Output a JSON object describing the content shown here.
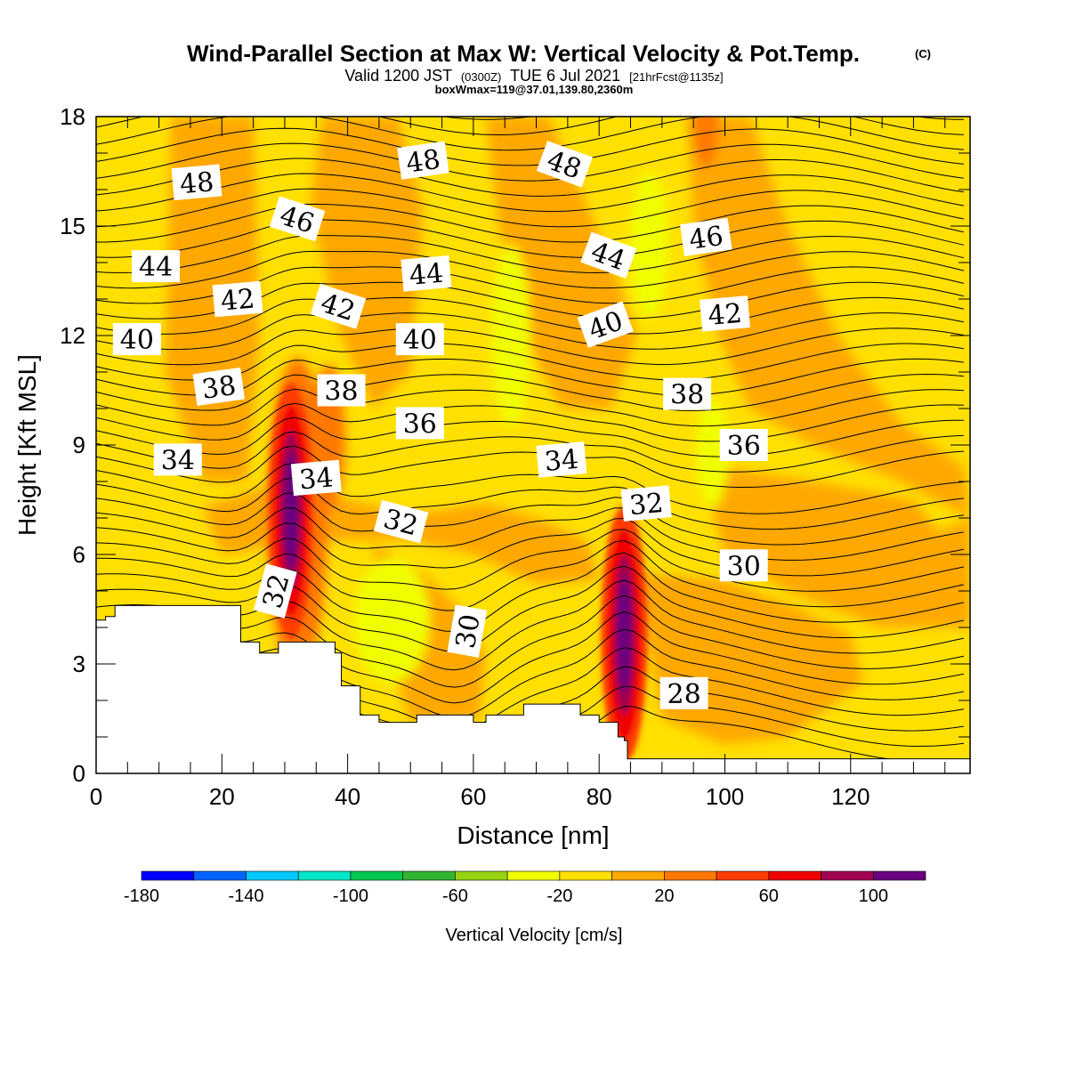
{
  "title": {
    "main": "Wind-Parallel Section at Max W: Vertical Velocity & Pot.Temp.",
    "copyright": "(C)",
    "valid_prefix": "Valid 1200 JST",
    "valid_utc": "(0300Z)",
    "valid_date": "TUE 6 Jul 2021",
    "forecast": "[21hrFcst@1135z]",
    "boxwmax": "boxWmax=119@37.01,139.80,2360m"
  },
  "chart_data": {
    "type": "heatmap",
    "xlabel": "Distance [nm]",
    "ylabel": "Height [Kft MSL]",
    "xlim": [
      0,
      139
    ],
    "ylim": [
      0,
      18
    ],
    "x_ticks": [
      "0",
      "20",
      "40",
      "60",
      "80",
      "100",
      "120"
    ],
    "y_ticks": [
      "0",
      "3",
      "6",
      "9",
      "12",
      "15",
      "18"
    ],
    "colorbar": {
      "label": "Vertical Velocity [cm/s]",
      "tick_labels": [
        "-180",
        "-140",
        "-100",
        "-60",
        "-20",
        "20",
        "60",
        "100"
      ],
      "bins": [
        {
          "min": -180,
          "max": -160,
          "color": "#0000ff"
        },
        {
          "min": -160,
          "max": -140,
          "color": "#0064ff"
        },
        {
          "min": -140,
          "max": -120,
          "color": "#00c8ff"
        },
        {
          "min": -120,
          "max": -100,
          "color": "#00e6c8"
        },
        {
          "min": -100,
          "max": -80,
          "color": "#00c850"
        },
        {
          "min": -80,
          "max": -60,
          "color": "#32b432"
        },
        {
          "min": -60,
          "max": -40,
          "color": "#96d214"
        },
        {
          "min": -40,
          "max": -20,
          "color": "#f0ff00"
        },
        {
          "min": -20,
          "max": 0,
          "color": "#ffe000"
        },
        {
          "min": 0,
          "max": 20,
          "color": "#ffa800"
        },
        {
          "min": 20,
          "max": 40,
          "color": "#ff7800"
        },
        {
          "min": 40,
          "max": 60,
          "color": "#ff3c00"
        },
        {
          "min": 60,
          "max": 80,
          "color": "#f00000"
        },
        {
          "min": 80,
          "max": 100,
          "color": "#a00050"
        },
        {
          "min": 100,
          "max": 120,
          "color": "#6a0080"
        }
      ]
    },
    "terrain": {
      "x": [
        0,
        1.5,
        3,
        16,
        20,
        23,
        26,
        29,
        32,
        35,
        38,
        39,
        42,
        45,
        48,
        51,
        58,
        60,
        62,
        65,
        68,
        71,
        74,
        77,
        80,
        83,
        84,
        84.5,
        139
      ],
      "y": [
        4.2,
        4.3,
        4.6,
        4.6,
        4.6,
        3.6,
        3.3,
        3.6,
        3.6,
        3.6,
        3.3,
        2.4,
        1.6,
        1.4,
        1.4,
        1.6,
        1.6,
        1.4,
        1.6,
        1.6,
        1.9,
        1.9,
        1.9,
        1.6,
        1.4,
        1.0,
        0.9,
        0.4,
        0.4
      ]
    },
    "updrafts": [
      {
        "x": 31,
        "y": 7.2,
        "w_max": 119
      },
      {
        "x": 84,
        "y": 3.8,
        "w_max": 110
      }
    ],
    "contour_labels": [
      {
        "text": "48",
        "x": 16,
        "y": 16.2,
        "angle": -5
      },
      {
        "text": "48",
        "x": 52,
        "y": 16.8,
        "angle": -8
      },
      {
        "text": "48",
        "x": 74.5,
        "y": 16.7,
        "angle": 20
      },
      {
        "text": "46",
        "x": 32,
        "y": 15.2,
        "angle": 18
      },
      {
        "text": "46",
        "x": 97,
        "y": 14.7,
        "angle": -8
      },
      {
        "text": "44",
        "x": 9.5,
        "y": 13.9,
        "angle": 0
      },
      {
        "text": "44",
        "x": 52.5,
        "y": 13.7,
        "angle": -5
      },
      {
        "text": "44",
        "x": 81.5,
        "y": 14.2,
        "angle": 20
      },
      {
        "text": "42",
        "x": 22.5,
        "y": 13.0,
        "angle": -5
      },
      {
        "text": "42",
        "x": 38.5,
        "y": 12.8,
        "angle": 18
      },
      {
        "text": "42",
        "x": 100,
        "y": 12.6,
        "angle": -5
      },
      {
        "text": "40",
        "x": 6.5,
        "y": 11.9,
        "angle": 0
      },
      {
        "text": "40",
        "x": 51.5,
        "y": 11.9,
        "angle": 0
      },
      {
        "text": "40",
        "x": 81,
        "y": 12.3,
        "angle": -20
      },
      {
        "text": "38",
        "x": 19.5,
        "y": 10.6,
        "angle": -8
      },
      {
        "text": "38",
        "x": 39,
        "y": 10.5,
        "angle": 0
      },
      {
        "text": "38",
        "x": 94,
        "y": 10.4,
        "angle": 0
      },
      {
        "text": "36",
        "x": 51.5,
        "y": 9.6,
        "angle": 0
      },
      {
        "text": "36",
        "x": 103,
        "y": 9.0,
        "angle": 0
      },
      {
        "text": "34",
        "x": 13,
        "y": 8.6,
        "angle": 0
      },
      {
        "text": "34",
        "x": 35,
        "y": 8.1,
        "angle": -5
      },
      {
        "text": "34",
        "x": 74,
        "y": 8.6,
        "angle": -5
      },
      {
        "text": "32",
        "x": 48.5,
        "y": 6.9,
        "angle": 15
      },
      {
        "text": "32",
        "x": 87.5,
        "y": 7.4,
        "angle": -5
      },
      {
        "text": "32",
        "x": 28.5,
        "y": 5.0,
        "angle": -75
      },
      {
        "text": "30",
        "x": 59,
        "y": 3.9,
        "angle": -80
      },
      {
        "text": "30",
        "x": 103,
        "y": 5.7,
        "angle": 0
      },
      {
        "text": "28",
        "x": 93.5,
        "y": 2.2,
        "angle": 0
      }
    ]
  }
}
